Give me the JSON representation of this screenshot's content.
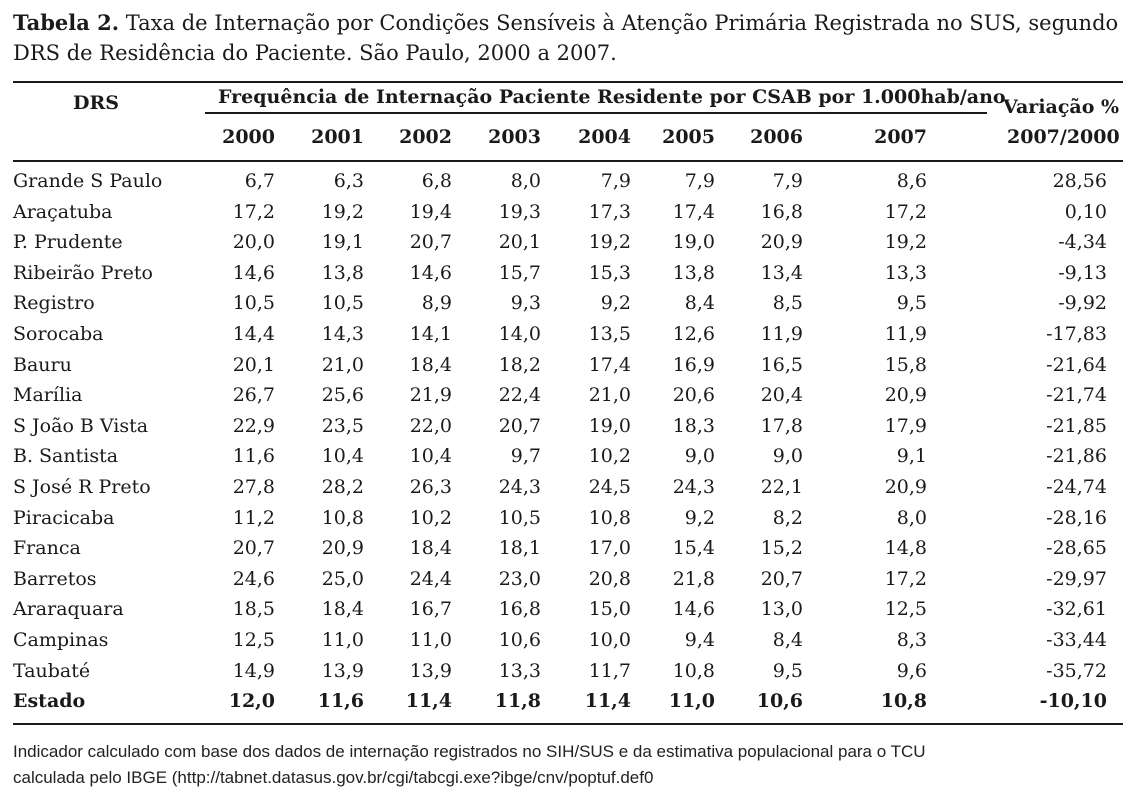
{
  "caption": {
    "label": "Tabela 2.",
    "line1": "Taxa de Internação por Condições Sensíveis à Atenção Primária Registrada no SUS, segundo",
    "line2": "DRS de Residência do Paciente. São Paulo, 2000 a 2007."
  },
  "header": {
    "drs": "DRS",
    "frequency": "Frequência de Internação Paciente Residente por CSAB por 1.000hab/ano",
    "variation_line1": "Variação %",
    "variation_line2": "2007/2000",
    "years": [
      "2000",
      "2001",
      "2002",
      "2003",
      "2004",
      "2005",
      "2006",
      "2007"
    ]
  },
  "rows": [
    {
      "name": "Grande S Paulo",
      "values": [
        "6,7",
        "6,3",
        "6,8",
        "8,0",
        "7,9",
        "7,9",
        "7,9",
        "8,6"
      ],
      "variation": "28,56"
    },
    {
      "name": "Araçatuba",
      "values": [
        "17,2",
        "19,2",
        "19,4",
        "19,3",
        "17,3",
        "17,4",
        "16,8",
        "17,2"
      ],
      "variation": "0,10"
    },
    {
      "name": "P. Prudente",
      "values": [
        "20,0",
        "19,1",
        "20,7",
        "20,1",
        "19,2",
        "19,0",
        "20,9",
        "19,2"
      ],
      "variation": "-4,34"
    },
    {
      "name": "Ribeirão Preto",
      "values": [
        "14,6",
        "13,8",
        "14,6",
        "15,7",
        "15,3",
        "13,8",
        "13,4",
        "13,3"
      ],
      "variation": "-9,13"
    },
    {
      "name": "Registro",
      "values": [
        "10,5",
        "10,5",
        "8,9",
        "9,3",
        "9,2",
        "8,4",
        "8,5",
        "9,5"
      ],
      "variation": "-9,92"
    },
    {
      "name": "Sorocaba",
      "values": [
        "14,4",
        "14,3",
        "14,1",
        "14,0",
        "13,5",
        "12,6",
        "11,9",
        "11,9"
      ],
      "variation": "-17,83"
    },
    {
      "name": "Bauru",
      "values": [
        "20,1",
        "21,0",
        "18,4",
        "18,2",
        "17,4",
        "16,9",
        "16,5",
        "15,8"
      ],
      "variation": "-21,64"
    },
    {
      "name": "Marília",
      "values": [
        "26,7",
        "25,6",
        "21,9",
        "22,4",
        "21,0",
        "20,6",
        "20,4",
        "20,9"
      ],
      "variation": "-21,74"
    },
    {
      "name": "S João B Vista",
      "values": [
        "22,9",
        "23,5",
        "22,0",
        "20,7",
        "19,0",
        "18,3",
        "17,8",
        "17,9"
      ],
      "variation": "-21,85"
    },
    {
      "name": "B. Santista",
      "values": [
        "11,6",
        "10,4",
        "10,4",
        "9,7",
        "10,2",
        "9,0",
        "9,0",
        "9,1"
      ],
      "variation": "-21,86"
    },
    {
      "name": "S José R Preto",
      "values": [
        "27,8",
        "28,2",
        "26,3",
        "24,3",
        "24,5",
        "24,3",
        "22,1",
        "20,9"
      ],
      "variation": "-24,74"
    },
    {
      "name": "Piracicaba",
      "values": [
        "11,2",
        "10,8",
        "10,2",
        "10,5",
        "10,8",
        "9,2",
        "8,2",
        "8,0"
      ],
      "variation": "-28,16"
    },
    {
      "name": "Franca",
      "values": [
        "20,7",
        "20,9",
        "18,4",
        "18,1",
        "17,0",
        "15,4",
        "15,2",
        "14,8"
      ],
      "variation": "-28,65"
    },
    {
      "name": "Barretos",
      "values": [
        "24,6",
        "25,0",
        "24,4",
        "23,0",
        "20,8",
        "21,8",
        "20,7",
        "17,2"
      ],
      "variation": "-29,97"
    },
    {
      "name": "Araraquara",
      "values": [
        "18,5",
        "18,4",
        "16,7",
        "16,8",
        "15,0",
        "14,6",
        "13,0",
        "12,5"
      ],
      "variation": "-32,61"
    },
    {
      "name": "Campinas",
      "values": [
        "12,5",
        "11,0",
        "11,0",
        "10,6",
        "10,0",
        "9,4",
        "8,4",
        "8,3"
      ],
      "variation": "-33,44"
    },
    {
      "name": "Taubaté",
      "values": [
        "14,9",
        "13,9",
        "13,9",
        "13,3",
        "11,7",
        "10,8",
        "9,5",
        "9,6"
      ],
      "variation": "-35,72"
    }
  ],
  "total": {
    "name": "Estado",
    "values": [
      "12,0",
      "11,6",
      "11,4",
      "11,8",
      "11,4",
      "11,0",
      "10,6",
      "10,8"
    ],
    "variation": "-10,10"
  },
  "note": {
    "line1": "Indicador calculado com base dos dados de internação registrados no SIH/SUS e da estimativa populacional para o TCU",
    "line2": "calculada pelo IBGE (http://tabnet.datasus.gov.br/cgi/tabcgi.exe?ibge/cnv/poptuf.def0"
  }
}
